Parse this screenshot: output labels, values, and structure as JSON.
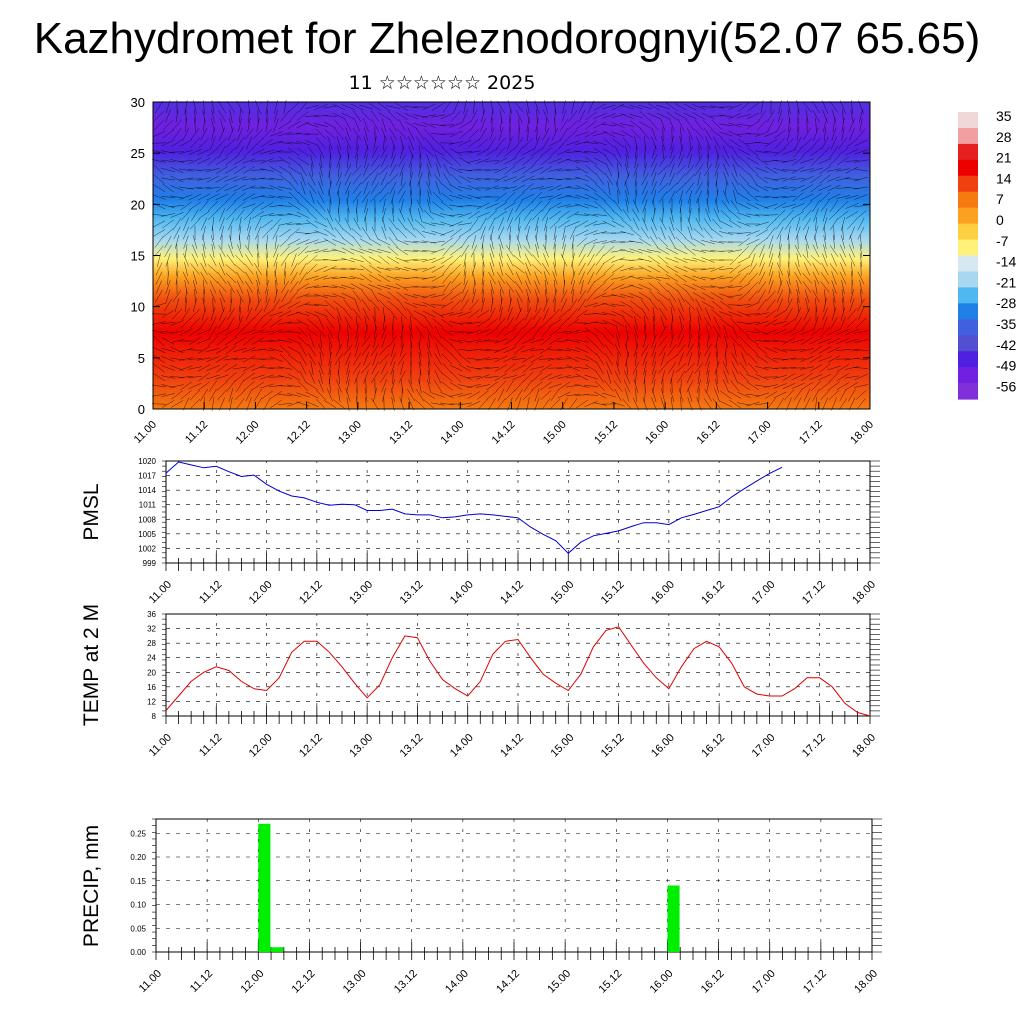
{
  "header": {
    "title": "Kazhydromet for Zheleznodorognyi(52.07 65.65)",
    "subtitle": "11 ☆☆☆☆☆☆ 2025"
  },
  "colors": {
    "pmsl_line": "#0000cc",
    "temp_line": "#dd0000",
    "precip_bar": "#00ee00",
    "grid": "#000000"
  },
  "chart_data": [
    {
      "type": "heatmap",
      "title": "",
      "ylim": [
        0,
        30
      ],
      "yticks": [
        0,
        5,
        10,
        15,
        20,
        25,
        30
      ],
      "x_ticks": [
        "11.00",
        "11.12",
        "12.00",
        "12.12",
        "13.00",
        "13.12",
        "14.00",
        "14.12",
        "15.00",
        "15.12",
        "16.00",
        "16.12",
        "17.00",
        "17.12",
        "18.00"
      ],
      "overlay": "wind barbs",
      "colorbar": {
        "labels": [
          35,
          28,
          21,
          14,
          7,
          0,
          -7,
          -14,
          -21,
          -28,
          -35,
          -42,
          -49,
          -56
        ],
        "colors": [
          "#f0d8d8",
          "#f0a0a0",
          "#e62020",
          "#ee0000",
          "#f04010",
          "#f57a10",
          "#fba020",
          "#fcd040",
          "#fff27a",
          "#d8e8f0",
          "#a8d8f0",
          "#50b8f0",
          "#2080e8",
          "#4060e0",
          "#5050d0",
          "#5020e0",
          "#7020e0",
          "#8030d8"
        ]
      }
    },
    {
      "type": "line",
      "ylabel": "PMSL",
      "ylim": [
        999,
        1020
      ],
      "yticks": [
        999,
        1002,
        1005,
        1008,
        1011,
        1014,
        1017,
        1020
      ],
      "x_ticks": [
        "11.00",
        "11.12",
        "12.00",
        "12.12",
        "13.00",
        "13.12",
        "14.00",
        "14.12",
        "15.00",
        "15.12",
        "16.00",
        "16.12",
        "17.00",
        "17.12",
        "18.00"
      ],
      "x_step_hours": 3,
      "series": [
        {
          "values": [
            1017.5,
            1019.8,
            1019.2,
            1018.6,
            1018.9,
            1017.8,
            1016.8,
            1017.1,
            1015.2,
            1013.8,
            1012.8,
            1012.4,
            1011.5,
            1010.9,
            1011.1,
            1011.0,
            1009.8,
            1009.8,
            1010.1,
            1009.1,
            1008.9,
            1008.9,
            1008.3,
            1008.5,
            1008.9,
            1009.1,
            1008.9,
            1008.6,
            1008.3,
            1006.4,
            1004.9,
            1003.6,
            1001.0,
            1003.3,
            1004.6,
            1005.1,
            1005.6,
            1006.5,
            1007.3,
            1007.3,
            1006.9,
            1008.3,
            1009.0,
            1009.8,
            1010.6,
            1012.6,
            1014.3,
            1015.9,
            1017.4,
            1018.7
          ]
        }
      ]
    },
    {
      "type": "line",
      "ylabel": "TEMP at 2 M",
      "ylim": [
        8,
        36
      ],
      "yticks": [
        8,
        12,
        16,
        20,
        24,
        28,
        32,
        36
      ],
      "x_ticks": [
        "11.00",
        "11.12",
        "12.00",
        "12.12",
        "13.00",
        "13.12",
        "14.00",
        "14.12",
        "15.00",
        "15.12",
        "16.00",
        "16.12",
        "17.00",
        "17.12",
        "18.00"
      ],
      "x_step_hours": 3,
      "series": [
        {
          "values": [
            9.5,
            13.5,
            17.5,
            20.0,
            21.5,
            20.5,
            17.5,
            15.5,
            15.0,
            18.5,
            25.5,
            28.5,
            28.5,
            25.5,
            21.5,
            17.0,
            13.0,
            16.5,
            24.0,
            30.0,
            29.5,
            23.0,
            18.0,
            15.5,
            13.5,
            17.5,
            25.0,
            28.5,
            29.0,
            24.0,
            19.5,
            17.0,
            15.0,
            19.5,
            27.0,
            31.5,
            32.5,
            27.5,
            22.5,
            18.5,
            15.5,
            21.5,
            26.5,
            28.5,
            27.0,
            22.5,
            16.0,
            14.0,
            13.5,
            13.5,
            15.5,
            18.5,
            18.5,
            16.0,
            11.5,
            9.0,
            8.0
          ]
        }
      ]
    },
    {
      "type": "bar",
      "ylabel": "PRECIP, mm",
      "ylim": [
        0,
        0.28
      ],
      "ytick_labels": [
        "0.00",
        "0.05",
        "0.10",
        "0.15",
        "0.20",
        "0.25"
      ],
      "x_ticks": [
        "11.00",
        "11.12",
        "12.00",
        "12.12",
        "13.00",
        "13.12",
        "14.00",
        "14.12",
        "15.00",
        "15.12",
        "16.00",
        "16.12",
        "17.00",
        "17.12",
        "18.00"
      ],
      "x_step_hours": 3,
      "series": [
        {
          "values": [
            0,
            0,
            0,
            0,
            0,
            0,
            0,
            0,
            0.27,
            0.01,
            0,
            0,
            0,
            0,
            0,
            0,
            0,
            0,
            0,
            0,
            0,
            0,
            0,
            0,
            0,
            0,
            0,
            0,
            0,
            0,
            0,
            0,
            0,
            0,
            0,
            0,
            0,
            0,
            0,
            0,
            0.14,
            0,
            0,
            0,
            0,
            0,
            0,
            0,
            0,
            0,
            0,
            0,
            0,
            0,
            0,
            0
          ]
        }
      ]
    }
  ]
}
